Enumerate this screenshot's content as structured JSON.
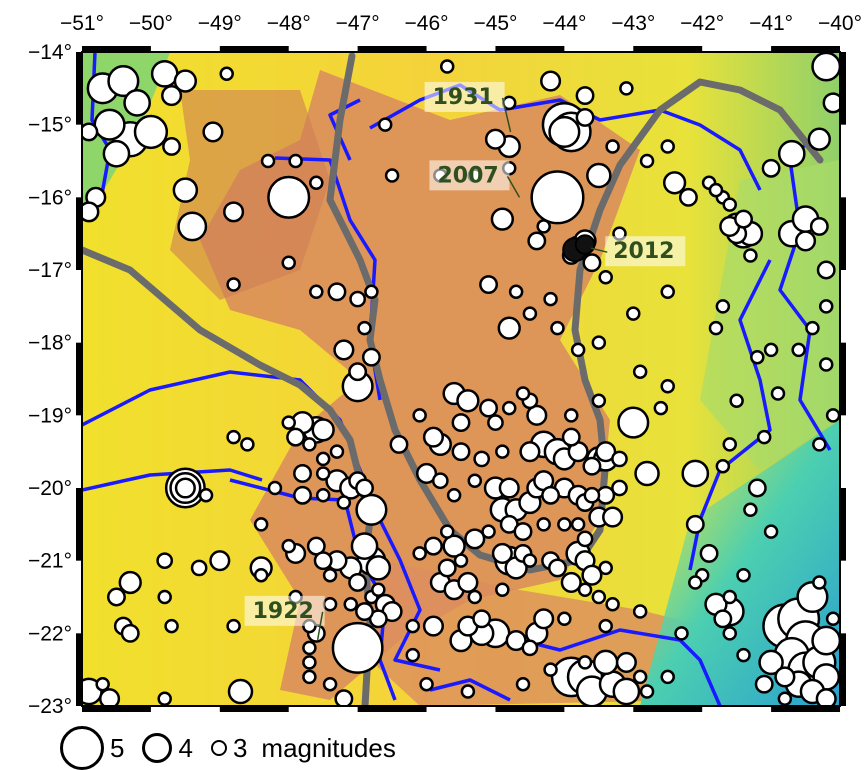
{
  "map": {
    "lon_ticks": [
      "−51°",
      "−50°",
      "−49°",
      "−48°",
      "−47°",
      "−46°",
      "−45°",
      "−44°",
      "−43°",
      "−42°",
      "−41°",
      "−40°"
    ],
    "lat_ticks": [
      "−14°",
      "−15°",
      "−16°",
      "−17°",
      "−18°",
      "−19°",
      "−20°",
      "−21°",
      "−22°",
      "−23°"
    ],
    "lon_range": [
      -51,
      -40
    ],
    "lat_range": [
      -23,
      -14
    ],
    "colors": {
      "low_elevation": "#3fc8b8",
      "mid_elevation": "#f2e22a",
      "high_elevation": "#d9875c",
      "state_borders": "#1a1aff",
      "craton_outline": "#6b6b6b",
      "event_fill": "#ffffff",
      "event_stroke": "#000000"
    },
    "annotations": [
      {
        "year": "1931",
        "lon": -44.2,
        "lat": -15.1
      },
      {
        "year": "2007",
        "lon": -44.1,
        "lat": -16.0
      },
      {
        "year": "2012",
        "lon": -43.9,
        "lat": -16.7
      },
      {
        "year": "1922",
        "lon": -47.0,
        "lat": -22.2
      }
    ]
  },
  "legend": {
    "items": [
      {
        "label": "5",
        "magnitude": 5
      },
      {
        "label": "4",
        "magnitude": 4
      },
      {
        "label": "3",
        "magnitude": 3
      }
    ],
    "suffix": "magnitudes"
  }
}
